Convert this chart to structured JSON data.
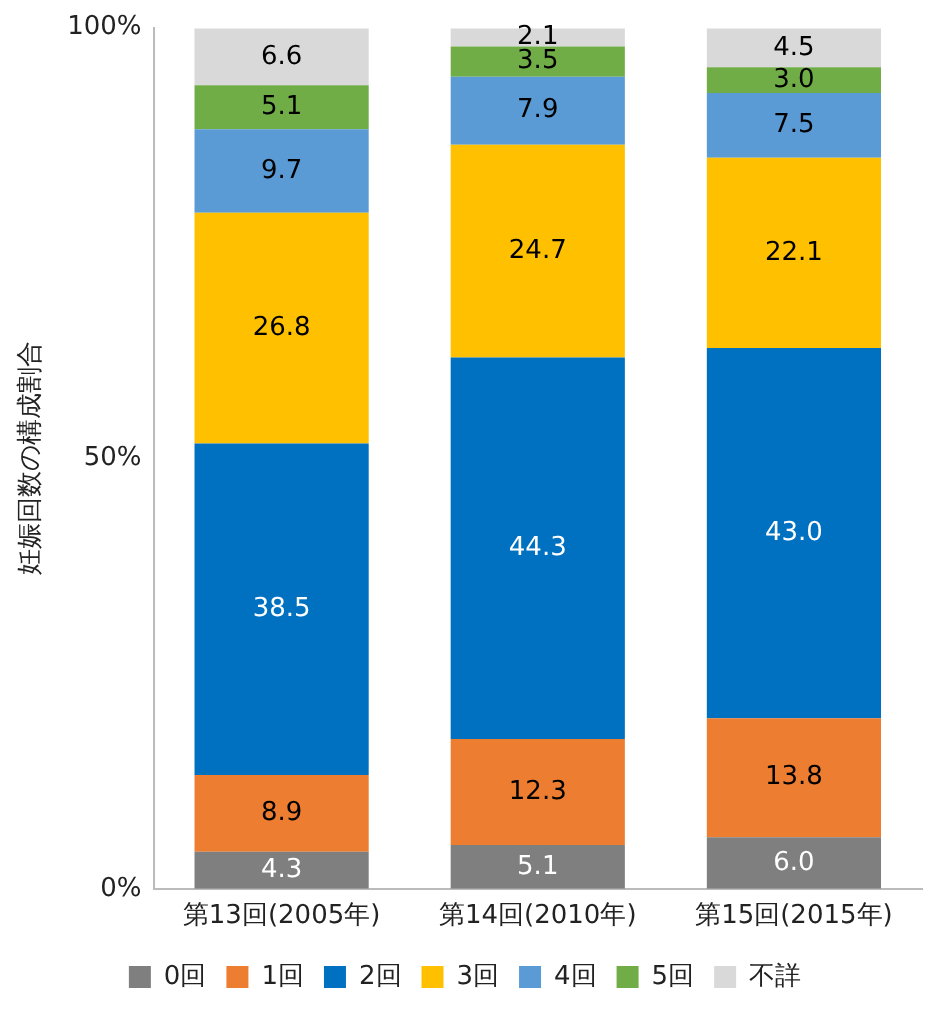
{
  "chart_data": {
    "type": "bar",
    "stacked": true,
    "ylabel": "妊娠回数の構成割合",
    "categories": [
      "第13回(2005年)",
      "第14回(2010年)",
      "第15回(2015年)"
    ],
    "ylim": [
      0,
      100
    ],
    "yticks": [
      {
        "value": 0,
        "label": "0%"
      },
      {
        "value": 50,
        "label": "50%"
      },
      {
        "value": 100,
        "label": "100%"
      }
    ],
    "grid": false,
    "legend": "bottom",
    "series": [
      {
        "name": "0回",
        "color": "#7f7f7f",
        "values": [
          4.3,
          5.1,
          6.0
        ],
        "value_labels": [
          "4.3",
          "5.1",
          "6.0"
        ]
      },
      {
        "name": "1回",
        "color": "#ed7d31",
        "values": [
          8.9,
          12.3,
          13.8
        ],
        "value_labels": [
          "8.9",
          "12.3",
          "13.8"
        ]
      },
      {
        "name": "2回",
        "color": "#0070c0",
        "values": [
          38.5,
          44.3,
          43.0
        ],
        "value_labels": [
          "38.5",
          "44.3",
          "43.0"
        ]
      },
      {
        "name": "3回",
        "color": "#ffc000",
        "values": [
          26.8,
          24.7,
          22.1
        ],
        "value_labels": [
          "26.8",
          "24.7",
          "22.1"
        ]
      },
      {
        "name": "4回",
        "color": "#5b9bd5",
        "values": [
          9.7,
          7.9,
          7.5
        ],
        "value_labels": [
          "9.7",
          "7.9",
          "7.5"
        ]
      },
      {
        "name": "5回",
        "color": "#70ad47",
        "values": [
          5.1,
          3.5,
          3.0
        ],
        "value_labels": [
          "5.1",
          "3.5",
          "3.0"
        ]
      },
      {
        "name": "不詳",
        "color": "#d9d9d9",
        "values": [
          6.6,
          2.1,
          4.5
        ],
        "value_labels": [
          "6.6",
          "2.1",
          "4.5"
        ]
      }
    ]
  }
}
